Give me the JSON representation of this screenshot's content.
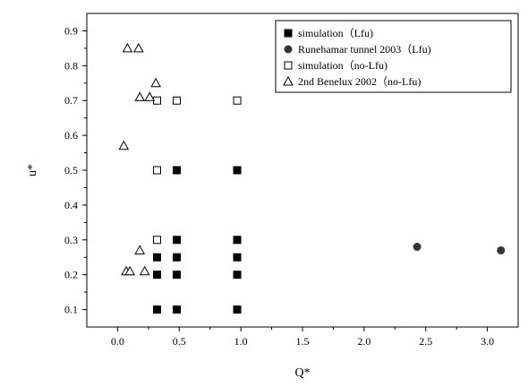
{
  "chart_data": {
    "type": "scatter",
    "title": "",
    "xlabel": "Q*",
    "ylabel": "u*",
    "xlim": [
      -0.25,
      3.25
    ],
    "ylim": [
      0.05,
      0.95
    ],
    "xticks": [
      0.0,
      0.5,
      1.0,
      1.5,
      2.0,
      2.5,
      3.0
    ],
    "xtick_labels": [
      "0.0",
      "0.5",
      "1.0",
      "1.5",
      "2.0",
      "2.5",
      "3.0"
    ],
    "yticks": [
      0.1,
      0.2,
      0.3,
      0.4,
      0.5,
      0.6,
      0.7,
      0.8,
      0.9
    ],
    "ytick_labels": [
      "0.1",
      "0.2",
      "0.3",
      "0.4",
      "0.5",
      "0.6",
      "0.7",
      "0.8",
      "0.9"
    ],
    "grid": false,
    "legend_position": "top-right",
    "series": [
      {
        "name": "simulation（Lfu)",
        "marker": "filled-square",
        "color": "#000000",
        "points": [
          [
            0.32,
            0.1
          ],
          [
            0.48,
            0.1
          ],
          [
            0.97,
            0.1
          ],
          [
            0.32,
            0.2
          ],
          [
            0.48,
            0.2
          ],
          [
            0.97,
            0.2
          ],
          [
            0.32,
            0.25
          ],
          [
            0.48,
            0.25
          ],
          [
            0.97,
            0.25
          ],
          [
            0.48,
            0.3
          ],
          [
            0.97,
            0.3
          ],
          [
            0.48,
            0.5
          ],
          [
            0.97,
            0.5
          ]
        ]
      },
      {
        "name": "Runehamar tunnel 2003（Lfu)",
        "marker": "filled-circle",
        "color": "#333333",
        "points": [
          [
            2.43,
            0.28
          ],
          [
            3.11,
            0.27
          ]
        ]
      },
      {
        "name": "simulation（no-Lfu)",
        "marker": "open-square",
        "color": "#000000",
        "points": [
          [
            0.32,
            0.3
          ],
          [
            0.32,
            0.5
          ],
          [
            0.32,
            0.7
          ],
          [
            0.48,
            0.7
          ],
          [
            0.97,
            0.7
          ]
        ]
      },
      {
        "name": "2nd Benelux 2002（no-Lfu)",
        "marker": "open-triangle",
        "color": "#000000",
        "points": [
          [
            0.08,
            0.85
          ],
          [
            0.17,
            0.85
          ],
          [
            0.31,
            0.75
          ],
          [
            0.18,
            0.71
          ],
          [
            0.26,
            0.71
          ],
          [
            0.05,
            0.57
          ],
          [
            0.18,
            0.27
          ],
          [
            0.07,
            0.21
          ],
          [
            0.1,
            0.21
          ],
          [
            0.22,
            0.21
          ]
        ]
      }
    ]
  }
}
